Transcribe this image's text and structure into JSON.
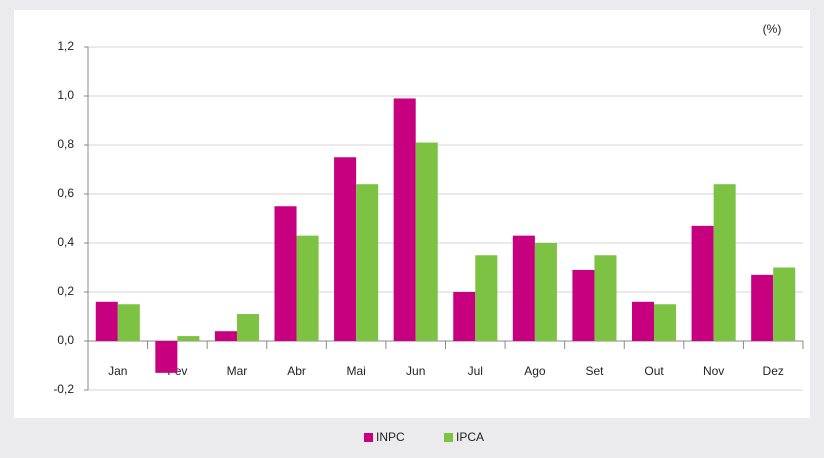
{
  "chart_data": {
    "type": "bar",
    "annotation": "(%)",
    "categories": [
      "Jan",
      "Fev",
      "Mar",
      "Abr",
      "Mai",
      "Jun",
      "Jul",
      "Ago",
      "Set",
      "Out",
      "Nov",
      "Dez"
    ],
    "series": [
      {
        "name": "INPC",
        "color": "#c6007e",
        "values": [
          0.16,
          -0.13,
          0.04,
          0.55,
          0.75,
          0.99,
          0.2,
          0.43,
          0.29,
          0.16,
          0.47,
          0.27
        ]
      },
      {
        "name": "IPCA",
        "color": "#7dc242",
        "values": [
          0.15,
          0.02,
          0.11,
          0.43,
          0.64,
          0.81,
          0.35,
          0.4,
          0.35,
          0.15,
          0.64,
          0.3
        ]
      }
    ],
    "ylim": [
      -0.2,
      1.2
    ],
    "yticks": [
      {
        "value": -0.2,
        "label": "-0,2"
      },
      {
        "value": 0,
        "label": "0,0"
      },
      {
        "value": 0.2,
        "label": "0,2"
      },
      {
        "value": 0.4,
        "label": "0,4"
      },
      {
        "value": 0.6,
        "label": "0,6"
      },
      {
        "value": 0.8,
        "label": "0,8"
      },
      {
        "value": 1.0,
        "label": "1,0"
      },
      {
        "value": 1.2,
        "label": "1,2"
      }
    ],
    "grid": true,
    "legend": "bottom"
  }
}
